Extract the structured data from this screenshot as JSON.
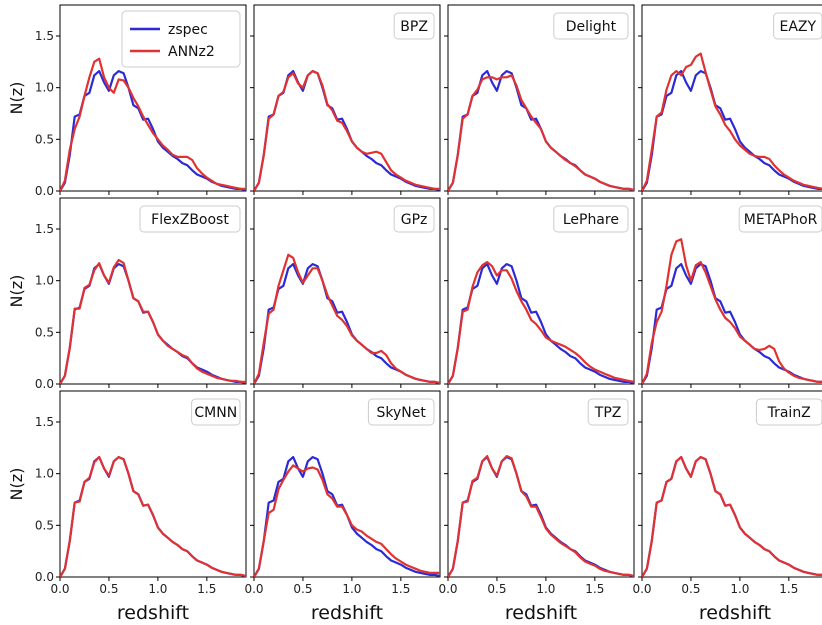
{
  "chart_data": {
    "type": "line",
    "xlabel": "redshift",
    "ylabel": "N(z)",
    "xlim": [
      0.0,
      1.9
    ],
    "ylim": [
      0.0,
      1.8
    ],
    "xticks": [
      "0.0",
      "0.5",
      "1.0",
      "1.5"
    ],
    "yticks": [
      "0.0",
      "0.5",
      "1.0",
      "1.5"
    ],
    "legend": {
      "placement": "top-right of first panel",
      "entries": [
        "zspec",
        "ANNz2"
      ]
    },
    "colors": {
      "zspec": "#2b2bd6",
      "estimate": "#e03232"
    },
    "x": [
      0.0,
      0.05,
      0.1,
      0.15,
      0.2,
      0.25,
      0.3,
      0.35,
      0.4,
      0.45,
      0.5,
      0.55,
      0.6,
      0.65,
      0.7,
      0.75,
      0.8,
      0.85,
      0.9,
      0.95,
      1.0,
      1.05,
      1.1,
      1.15,
      1.2,
      1.25,
      1.3,
      1.35,
      1.4,
      1.45,
      1.5,
      1.55,
      1.6,
      1.65,
      1.7,
      1.75,
      1.8,
      1.85,
      1.9
    ],
    "zspec": [
      0.0,
      0.08,
      0.35,
      0.72,
      0.74,
      0.92,
      0.95,
      1.12,
      1.16,
      1.05,
      0.97,
      1.12,
      1.16,
      1.14,
      1.0,
      0.83,
      0.8,
      0.69,
      0.7,
      0.6,
      0.48,
      0.42,
      0.38,
      0.34,
      0.31,
      0.27,
      0.25,
      0.2,
      0.16,
      0.14,
      0.12,
      0.09,
      0.07,
      0.05,
      0.04,
      0.03,
      0.02,
      0.02,
      0.01
    ],
    "panels": [
      {
        "title": "",
        "values": [
          0.0,
          0.1,
          0.4,
          0.6,
          0.72,
          0.92,
          1.1,
          1.25,
          1.28,
          1.1,
          1.0,
          0.95,
          1.08,
          1.07,
          1.0,
          0.9,
          0.82,
          0.72,
          0.64,
          0.56,
          0.5,
          0.44,
          0.4,
          0.35,
          0.33,
          0.33,
          0.33,
          0.3,
          0.22,
          0.17,
          0.13,
          0.1,
          0.07,
          0.06,
          0.05,
          0.04,
          0.03,
          0.02,
          0.02
        ]
      },
      {
        "title": "BPZ",
        "values": [
          0.0,
          0.08,
          0.35,
          0.7,
          0.74,
          0.92,
          0.96,
          1.1,
          1.14,
          1.04,
          1.0,
          1.12,
          1.16,
          1.14,
          1.02,
          0.84,
          0.78,
          0.68,
          0.66,
          0.58,
          0.48,
          0.42,
          0.38,
          0.36,
          0.37,
          0.38,
          0.36,
          0.28,
          0.2,
          0.16,
          0.13,
          0.1,
          0.08,
          0.06,
          0.05,
          0.04,
          0.03,
          0.02,
          0.02
        ]
      },
      {
        "title": "Delight",
        "values": [
          0.0,
          0.08,
          0.35,
          0.7,
          0.74,
          0.92,
          0.98,
          1.08,
          1.1,
          1.1,
          1.08,
          1.1,
          1.1,
          1.12,
          1.02,
          0.88,
          0.8,
          0.72,
          0.66,
          0.6,
          0.48,
          0.42,
          0.38,
          0.34,
          0.3,
          0.27,
          0.24,
          0.2,
          0.16,
          0.14,
          0.12,
          0.09,
          0.07,
          0.05,
          0.04,
          0.03,
          0.02,
          0.02,
          0.01
        ]
      },
      {
        "title": "EAZY",
        "values": [
          0.0,
          0.1,
          0.4,
          0.72,
          0.76,
          0.98,
          1.12,
          1.16,
          1.12,
          1.2,
          1.22,
          1.3,
          1.33,
          1.15,
          0.98,
          0.82,
          0.74,
          0.64,
          0.58,
          0.5,
          0.44,
          0.4,
          0.36,
          0.34,
          0.33,
          0.33,
          0.31,
          0.25,
          0.2,
          0.16,
          0.13,
          0.1,
          0.08,
          0.06,
          0.05,
          0.04,
          0.03,
          0.02,
          0.02
        ]
      },
      {
        "title": "FlexZBoost",
        "values": [
          0.0,
          0.08,
          0.35,
          0.73,
          0.73,
          0.93,
          0.96,
          1.1,
          1.17,
          1.05,
          0.98,
          1.13,
          1.2,
          1.17,
          1.0,
          0.83,
          0.8,
          0.7,
          0.7,
          0.6,
          0.48,
          0.42,
          0.37,
          0.34,
          0.31,
          0.28,
          0.26,
          0.2,
          0.15,
          0.12,
          0.1,
          0.08,
          0.06,
          0.05,
          0.04,
          0.03,
          0.03,
          0.02,
          0.02
        ]
      },
      {
        "title": "GPz",
        "values": [
          0.0,
          0.1,
          0.4,
          0.68,
          0.72,
          0.95,
          1.1,
          1.25,
          1.22,
          1.08,
          0.98,
          1.05,
          1.12,
          1.12,
          1.0,
          0.86,
          0.76,
          0.66,
          0.62,
          0.56,
          0.47,
          0.42,
          0.38,
          0.34,
          0.3,
          0.3,
          0.32,
          0.28,
          0.2,
          0.15,
          0.12,
          0.09,
          0.07,
          0.05,
          0.04,
          0.03,
          0.02,
          0.02,
          0.01
        ]
      },
      {
        "title": "LePhare",
        "values": [
          0.0,
          0.08,
          0.35,
          0.7,
          0.72,
          0.94,
          1.08,
          1.15,
          1.18,
          1.14,
          1.05,
          1.1,
          1.1,
          1.02,
          0.9,
          0.8,
          0.72,
          0.62,
          0.58,
          0.52,
          0.45,
          0.42,
          0.4,
          0.38,
          0.36,
          0.33,
          0.3,
          0.26,
          0.21,
          0.17,
          0.14,
          0.12,
          0.1,
          0.08,
          0.06,
          0.05,
          0.04,
          0.03,
          0.02
        ]
      },
      {
        "title": "METAPhoR",
        "values": [
          0.0,
          0.1,
          0.4,
          0.6,
          0.7,
          0.95,
          1.25,
          1.38,
          1.4,
          1.15,
          1.0,
          1.15,
          1.18,
          1.08,
          0.95,
          0.82,
          0.72,
          0.64,
          0.6,
          0.54,
          0.46,
          0.42,
          0.38,
          0.34,
          0.33,
          0.34,
          0.37,
          0.34,
          0.22,
          0.15,
          0.11,
          0.08,
          0.06,
          0.05,
          0.04,
          0.03,
          0.02,
          0.02,
          0.01
        ]
      },
      {
        "title": "CMNN",
        "values": [
          0.0,
          0.08,
          0.35,
          0.72,
          0.73,
          0.92,
          0.96,
          1.11,
          1.16,
          1.05,
          0.98,
          1.12,
          1.16,
          1.14,
          1.0,
          0.83,
          0.8,
          0.69,
          0.7,
          0.6,
          0.48,
          0.42,
          0.38,
          0.34,
          0.31,
          0.27,
          0.25,
          0.2,
          0.16,
          0.14,
          0.12,
          0.09,
          0.07,
          0.05,
          0.04,
          0.03,
          0.02,
          0.02,
          0.01
        ]
      },
      {
        "title": "SkyNet",
        "values": [
          0.0,
          0.08,
          0.35,
          0.62,
          0.65,
          0.85,
          0.94,
          1.02,
          1.08,
          1.05,
          1.02,
          1.05,
          1.06,
          1.04,
          0.94,
          0.8,
          0.76,
          0.68,
          0.68,
          0.6,
          0.5,
          0.46,
          0.44,
          0.4,
          0.37,
          0.34,
          0.32,
          0.27,
          0.22,
          0.18,
          0.15,
          0.12,
          0.1,
          0.08,
          0.06,
          0.05,
          0.04,
          0.04,
          0.04
        ]
      },
      {
        "title": "TPZ",
        "values": [
          0.0,
          0.08,
          0.35,
          0.72,
          0.73,
          0.93,
          0.96,
          1.12,
          1.17,
          1.05,
          0.98,
          1.12,
          1.17,
          1.15,
          1.0,
          0.83,
          0.78,
          0.68,
          0.68,
          0.58,
          0.47,
          0.41,
          0.37,
          0.33,
          0.3,
          0.27,
          0.24,
          0.19,
          0.15,
          0.13,
          0.11,
          0.08,
          0.06,
          0.05,
          0.04,
          0.03,
          0.02,
          0.02,
          0.01
        ]
      },
      {
        "title": "TrainZ",
        "values": [
          0.0,
          0.08,
          0.35,
          0.72,
          0.74,
          0.92,
          0.95,
          1.12,
          1.16,
          1.05,
          0.97,
          1.12,
          1.16,
          1.14,
          1.0,
          0.83,
          0.8,
          0.69,
          0.7,
          0.6,
          0.48,
          0.42,
          0.38,
          0.34,
          0.31,
          0.27,
          0.25,
          0.2,
          0.16,
          0.14,
          0.12,
          0.09,
          0.07,
          0.05,
          0.04,
          0.03,
          0.02,
          0.02,
          0.01
        ]
      }
    ]
  }
}
